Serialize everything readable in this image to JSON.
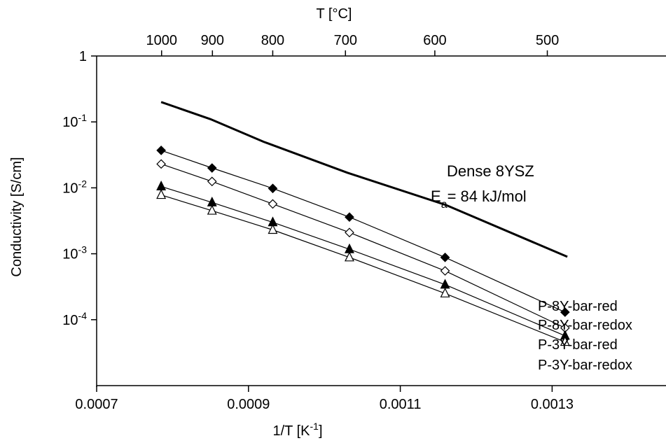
{
  "chart_data": {
    "type": "scatter",
    "x_axis": {
      "label": "1/T",
      "unit_base": "K",
      "unit_exp": "-1",
      "range": [
        0.0007,
        0.00145
      ],
      "ticks": [
        {
          "value": 0.0007,
          "label": "0.0007"
        },
        {
          "value": 0.0009,
          "label": "0.0009"
        },
        {
          "value": 0.0011,
          "label": "0.0011"
        },
        {
          "value": 0.0013,
          "label": "0.0013"
        }
      ]
    },
    "top_axis": {
      "label": "T [°C]",
      "ticks": [
        {
          "celsius": 1000,
          "label": "1000"
        },
        {
          "celsius": 900,
          "label": "900"
        },
        {
          "celsius": 800,
          "label": "800"
        },
        {
          "celsius": 700,
          "label": "700"
        },
        {
          "celsius": 600,
          "label": "600"
        },
        {
          "celsius": 500,
          "label": "500"
        }
      ]
    },
    "y_axis": {
      "label": "Conductivity [S/cm]",
      "scale": "log",
      "range": [
        1e-05,
        1
      ],
      "ticks": [
        {
          "value": 1,
          "base": "1",
          "exp": ""
        },
        {
          "value": 0.1,
          "base": "10",
          "exp": "-1"
        },
        {
          "value": 0.01,
          "base": "10",
          "exp": "-2"
        },
        {
          "value": 0.001,
          "base": "10",
          "exp": "-3"
        },
        {
          "value": 0.0001,
          "base": "10",
          "exp": "-4"
        }
      ]
    },
    "reference_line": {
      "x": [
        0.000785,
        0.00085,
        0.00092,
        0.00103,
        0.00116,
        0.00132
      ],
      "y": [
        0.2,
        0.11,
        0.05,
        0.017,
        0.0055,
        0.0009
      ],
      "annotation_line1": "Dense 8YSZ",
      "annotation_base": "E",
      "annotation_sub": "a",
      "annotation_rest": "= 84 kJ/mol"
    },
    "series": [
      {
        "name": "P-8Y-bar-red",
        "marker": "diamond-filled",
        "x": [
          0.000785,
          0.000852,
          0.000932,
          0.001033,
          0.001159,
          0.001317
        ],
        "y": [
          0.037,
          0.02,
          0.0098,
          0.0036,
          0.00088,
          0.00013
        ]
      },
      {
        "name": "P-8Y-bar-redox",
        "marker": "diamond-open",
        "x": [
          0.000785,
          0.000852,
          0.000932,
          0.001033,
          0.001159,
          0.001317
        ],
        "y": [
          0.023,
          0.0125,
          0.0057,
          0.0021,
          0.00055,
          7.5e-05
        ]
      },
      {
        "name": "P-3Y-bar-red",
        "marker": "triangle-filled",
        "x": [
          0.000785,
          0.000852,
          0.000932,
          0.001033,
          0.001159,
          0.001317
        ],
        "y": [
          0.0105,
          0.006,
          0.003,
          0.00117,
          0.00034,
          5.7e-05
        ]
      },
      {
        "name": "P-3Y-bar-redox",
        "marker": "triangle-open",
        "x": [
          0.000785,
          0.000852,
          0.000932,
          0.001033,
          0.001159,
          0.001317
        ],
        "y": [
          0.0078,
          0.0045,
          0.0023,
          0.00088,
          0.00025,
          4.6e-05
        ]
      }
    ]
  }
}
